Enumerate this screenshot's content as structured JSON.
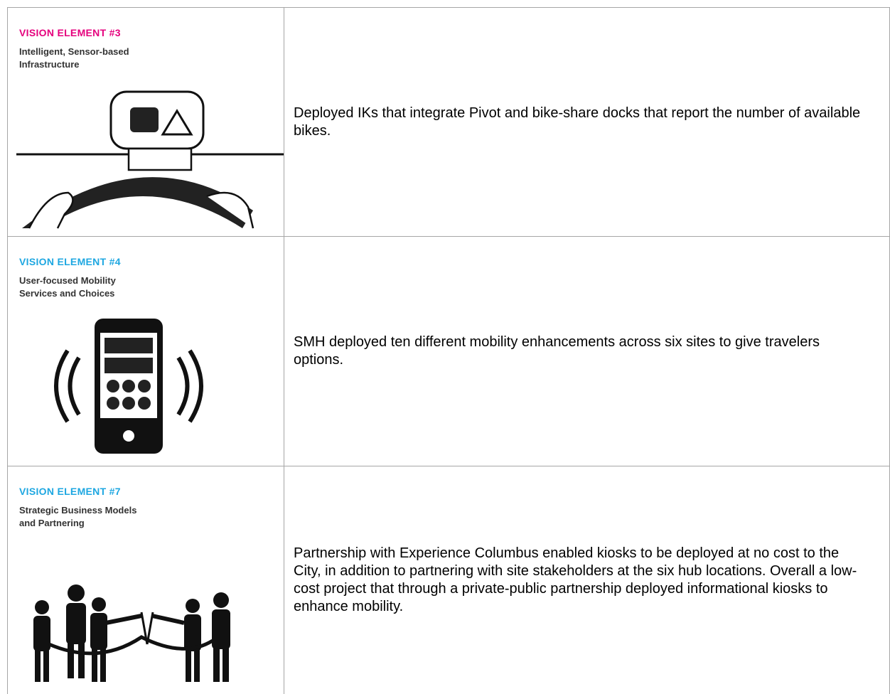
{
  "table": {
    "rows": [
      {
        "label": "VISION ELEMENT #3",
        "label_color": "#e5007d",
        "title": "Intelligent, Sensor-based\nInfrastructure",
        "description": "Deployed IKs that integrate Pivot and bike-share docks that report the number of available bikes."
      },
      {
        "label": "VISION ELEMENT #4",
        "label_color": "#1ea7e1",
        "title": "User-focused Mobility\nServices and Choices",
        "description": "SMH deployed ten different mobility enhancements across six sites to give travelers options."
      },
      {
        "label": "VISION ELEMENT #7",
        "label_color": "#1ea7e1",
        "title": "Strategic Business Models\nand Partnering",
        "description": "Partnership with Experience Columbus enabled kiosks to be deployed at no cost to the City, in addition to partnering with site stakeholders at the six hub locations. Overall a low-cost project that through a private-public partnership deployed informational kiosks to enhance mobility."
      }
    ]
  }
}
